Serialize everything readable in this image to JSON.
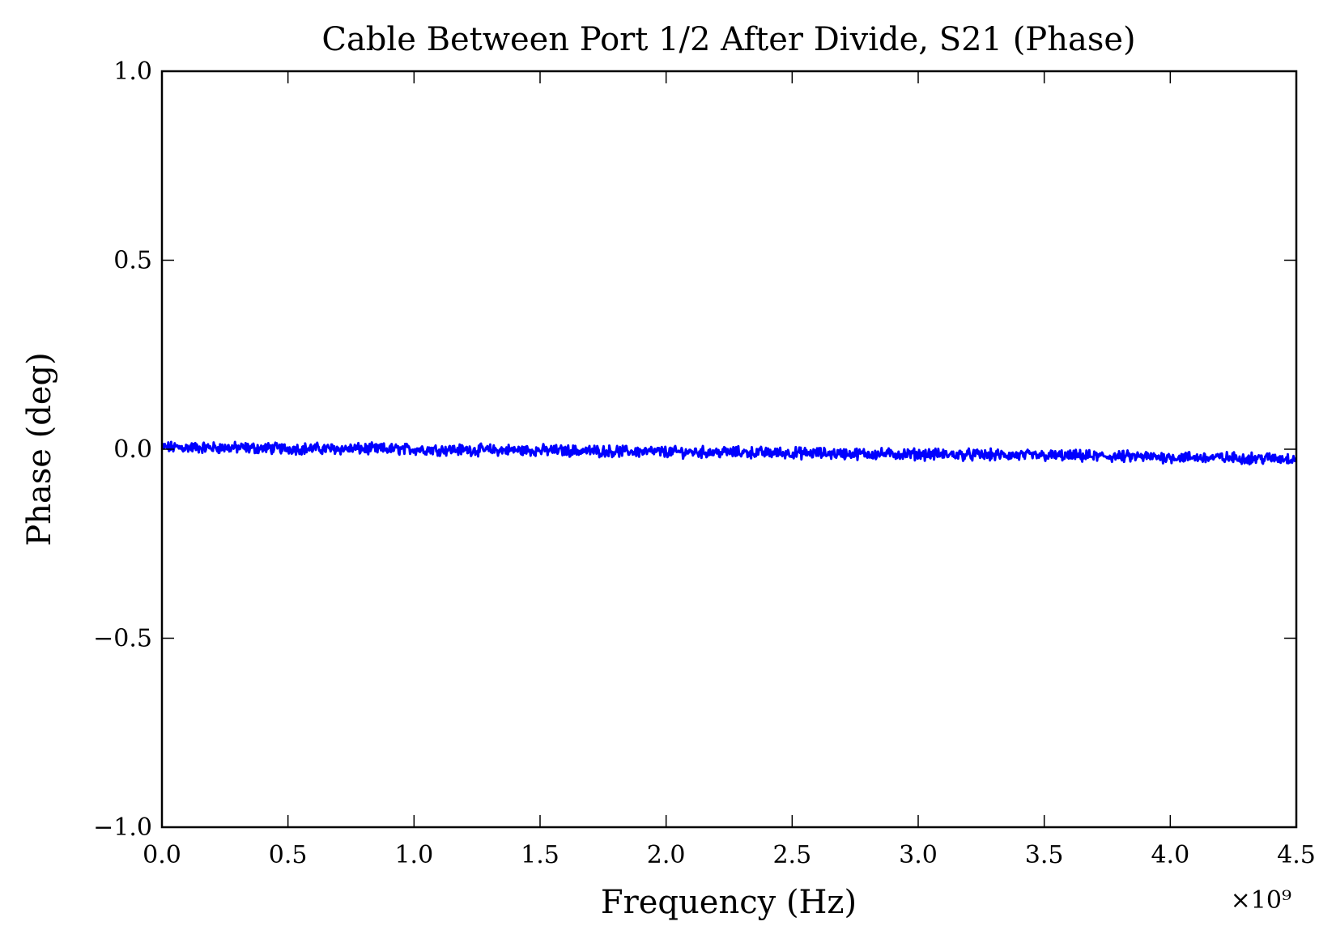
{
  "chart_data": {
    "type": "line",
    "title": "Cable Between Port 1/2 After Divide, S21 (Phase)",
    "xlabel": "Frequency (Hz)",
    "ylabel": "Phase (deg)",
    "x_offset_label": "×10⁹",
    "xlim": [
      0.0,
      4.5
    ],
    "ylim": [
      -1.0,
      1.0
    ],
    "x_ticks": [
      0.0,
      0.5,
      1.0,
      1.5,
      2.0,
      2.5,
      3.0,
      3.5,
      4.0,
      4.5
    ],
    "x_tick_labels": [
      "0.0",
      "0.5",
      "1.0",
      "1.5",
      "2.0",
      "2.5",
      "3.0",
      "3.5",
      "4.0",
      "4.5"
    ],
    "y_ticks": [
      1.0,
      0.5,
      0.0,
      -0.5,
      -1.0
    ],
    "y_tick_labels": [
      "1.0",
      "0.5",
      "0.0",
      "−0.5",
      "−1.0"
    ],
    "grid": false,
    "series": [
      {
        "color": "#0000ff",
        "x": [
          0.0,
          0.25,
          0.5,
          0.75,
          1.0,
          1.25,
          1.5,
          1.75,
          2.0,
          2.25,
          2.5,
          2.75,
          3.0,
          3.25,
          3.5,
          3.75,
          4.0,
          4.25,
          4.5
        ],
        "values": [
          0.005,
          0.004,
          0.002,
          0.001,
          0.0,
          -0.002,
          -0.003,
          -0.005,
          -0.007,
          -0.008,
          -0.01,
          -0.012,
          -0.013,
          -0.015,
          -0.017,
          -0.019,
          -0.021,
          -0.023,
          -0.025
        ]
      }
    ]
  }
}
